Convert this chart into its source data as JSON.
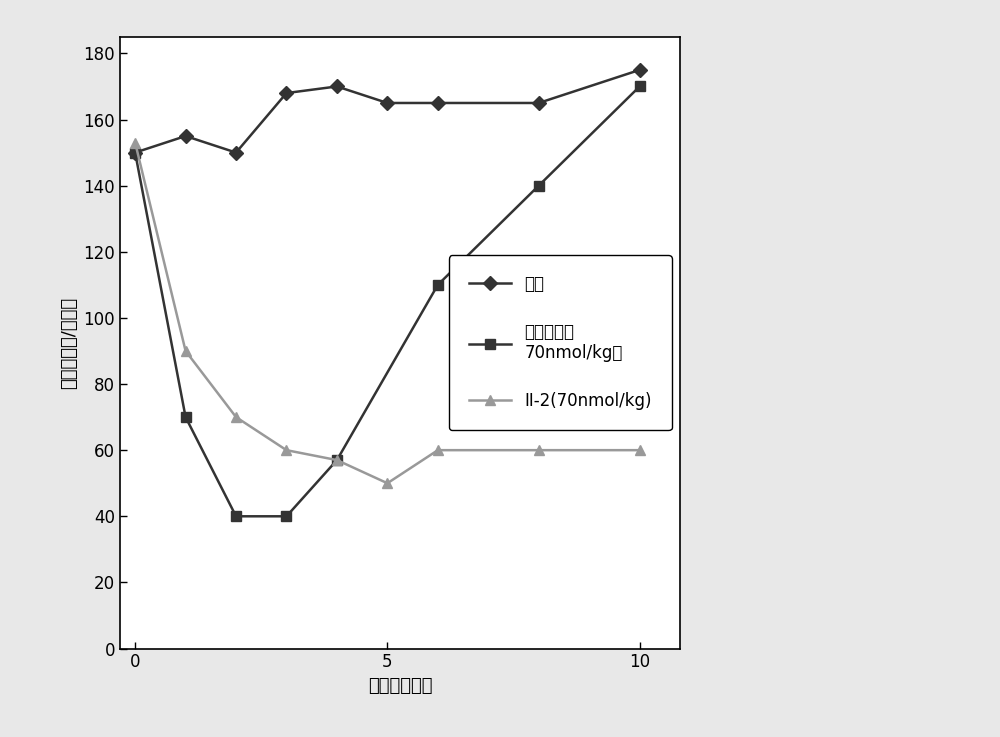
{
  "series": [
    {
      "label": "对照",
      "x": [
        0,
        1,
        2,
        3,
        4,
        5,
        6,
        8,
        10
      ],
      "y": [
        150,
        155,
        150,
        168,
        170,
        165,
        165,
        165,
        175
      ],
      "color": "#333333",
      "marker": "D",
      "markersize": 7,
      "linestyle": "-",
      "linewidth": 1.8
    },
    {
      "label": "人胰岛素（\n70nmol/kg）",
      "x": [
        0,
        1,
        2,
        3,
        4,
        6,
        8,
        10
      ],
      "y": [
        150,
        70,
        40,
        40,
        57,
        110,
        140,
        170
      ],
      "color": "#333333",
      "marker": "s",
      "markersize": 7,
      "linestyle": "-",
      "linewidth": 1.8
    },
    {
      "label": "II-2(70nmol/kg)",
      "x": [
        0,
        1,
        2,
        3,
        4,
        5,
        6,
        8,
        10
      ],
      "y": [
        153,
        90,
        70,
        60,
        57,
        50,
        60,
        60,
        60
      ],
      "color": "#999999",
      "marker": "^",
      "markersize": 7,
      "linestyle": "-",
      "linewidth": 1.8
    }
  ],
  "xlabel": "时间（小时）",
  "ylabel": "血糖（毫克/分升）",
  "xlim": [
    -0.3,
    10.8
  ],
  "ylim": [
    0,
    185
  ],
  "yticks": [
    0,
    20,
    40,
    60,
    80,
    100,
    120,
    140,
    160,
    180
  ],
  "xticks": [
    0,
    5,
    10
  ],
  "figure_bg_color": "#e8e8e8",
  "plot_bg_color": "#ffffff",
  "legend_fontsize": 12,
  "axis_label_fontsize": 13,
  "tick_fontsize": 12
}
